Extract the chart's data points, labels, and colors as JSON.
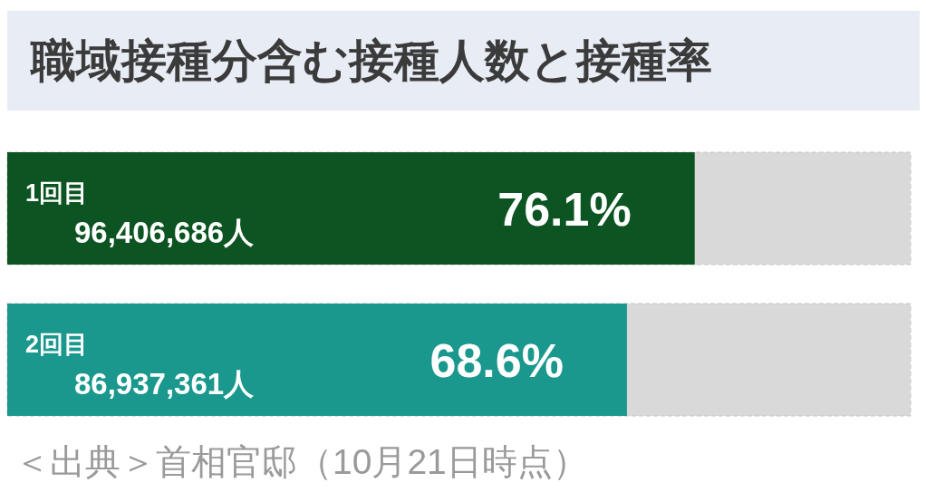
{
  "chart_data": {
    "type": "bar",
    "orientation": "horizontal",
    "title": "職域接種分含む接種人数と接種率",
    "categories": [
      "1回目",
      "2回目"
    ],
    "values": [
      76.1,
      68.6
    ],
    "colors": [
      "#0c5421",
      "#1a988d"
    ],
    "xlim": [
      0,
      100
    ],
    "tick_labels": "y",
    "value_labels": [
      "76.1%",
      "68.6%"
    ],
    "annotations": [
      "96,406,686人",
      "86,937,361人",
      "＜出典＞首相官邸（10月21日時点）"
    ]
  }
}
